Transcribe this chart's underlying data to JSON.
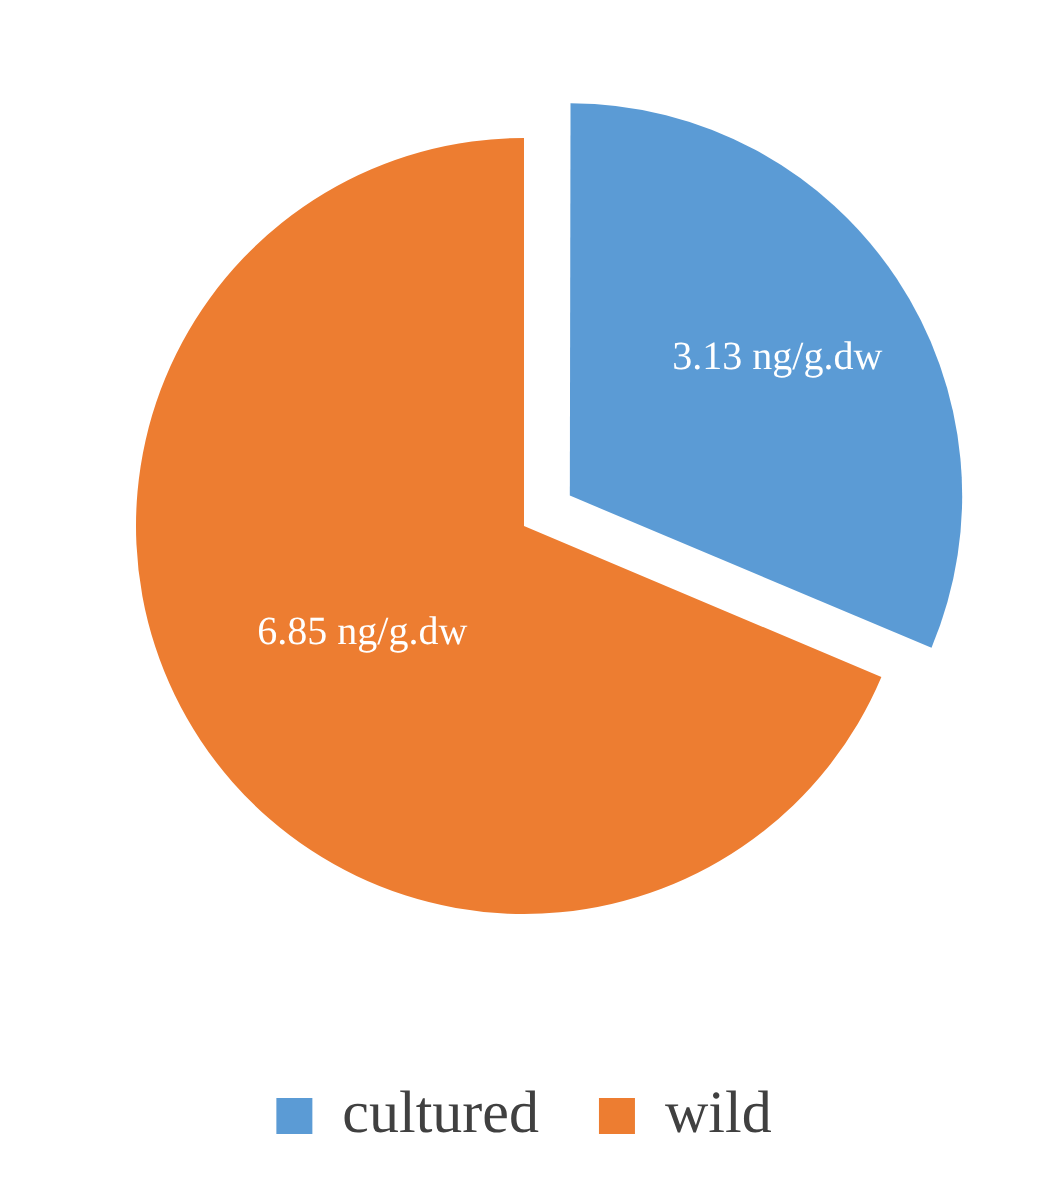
{
  "chart_data": {
    "type": "pie",
    "categories": [
      "cultured",
      "wild"
    ],
    "values": [
      3.13,
      6.85
    ],
    "colors": [
      "#5b9bd5",
      "#ed7d31"
    ],
    "value_labels": [
      "3.13 ng/g.dw",
      "6.85 ng/g.dw"
    ],
    "legend": "bottom"
  }
}
